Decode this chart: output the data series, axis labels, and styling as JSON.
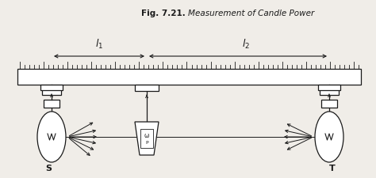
{
  "bg_color": "#f0ede8",
  "line_color": "#1a1a1a",
  "title_bold": "Fig. 7.21. ",
  "title_italic": "Measurement of Candle Power",
  "label_S": "S",
  "label_T": "T",
  "label_l1": "$l_1$",
  "label_l2": "$l_2$",
  "fig_width": 4.74,
  "fig_height": 2.25,
  "dpi": 100
}
